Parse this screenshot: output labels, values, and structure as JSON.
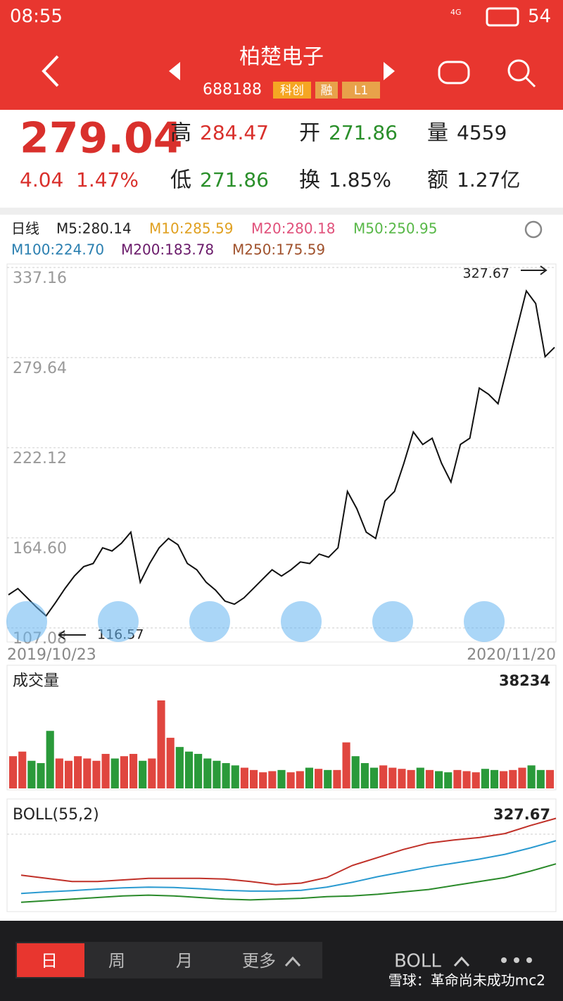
{
  "status_bar": {
    "time": "08:55",
    "network": "4G",
    "battery": "54"
  },
  "header": {
    "title": "柏楚电子",
    "code": "688188",
    "tags": [
      "科创",
      "融",
      "L1"
    ]
  },
  "quote": {
    "price": "279.04",
    "change": "4.04",
    "change_pct": "1.47%",
    "fields": [
      {
        "label": "高",
        "value": "284.47",
        "color": "#d9302c"
      },
      {
        "label": "开",
        "value": "271.86",
        "color": "#2a8f2a"
      },
      {
        "label": "量",
        "value": "4559",
        "color": "#222222"
      },
      {
        "label": "低",
        "value": "271.86",
        "color": "#2a8f2a"
      },
      {
        "label": "换",
        "value": "1.85%",
        "color": "#222222"
      },
      {
        "label": "额",
        "value": "1.27亿",
        "color": "#222222"
      }
    ]
  },
  "ma_legend": [
    {
      "text": "日线",
      "color": "#222222"
    },
    {
      "text": "M5:280.14",
      "color": "#222222"
    },
    {
      "text": "M10:285.59",
      "color": "#e0a020"
    },
    {
      "text": "M20:280.18",
      "color": "#e0507a"
    },
    {
      "text": "M50:250.95",
      "color": "#58b848"
    },
    {
      "text": "M100:224.70",
      "color": "#2a7fb0"
    },
    {
      "text": "M200:183.78",
      "color": "#6a1a6a"
    },
    {
      "text": "M250:175.59",
      "color": "#a0522d"
    }
  ],
  "chart_data": [
    {
      "type": "line",
      "color": "#111111",
      "values": [
        130,
        134,
        128,
        122,
        116.57,
        125,
        134,
        142,
        148,
        150,
        160,
        158,
        163,
        170,
        138,
        150,
        160,
        166,
        162,
        150,
        146,
        138,
        133,
        126,
        124,
        128,
        134,
        140,
        146,
        142,
        146,
        151,
        150,
        156,
        154,
        160,
        196,
        185,
        170,
        166,
        190,
        196,
        214,
        234,
        226,
        230,
        214,
        202,
        226,
        230,
        262,
        258,
        252,
        276,
        300,
        324,
        316,
        282,
        288
      ],
      "ylim": [
        107.08,
        337.16
      ],
      "yticks": [
        107.08,
        {
          "value": 164.6,
          "label": "164.60"
        },
        222.12,
        279.64,
        337.16
      ],
      "grid": true,
      "annotations": [
        "327.67",
        "116.57"
      ],
      "x_labels": [
        "2019/10/23",
        "2020/11/20"
      ]
    },
    {
      "type": "bar",
      "title": "成交量",
      "values": [
        14000,
        16000,
        12000,
        11000,
        25000,
        13000,
        12000,
        14000,
        13000,
        12000,
        15000,
        13000,
        14000,
        15000,
        12000,
        13000,
        38234,
        22000,
        18000,
        16000,
        15000,
        13000,
        12000,
        11000,
        10000,
        9000,
        8000,
        7000,
        7500,
        8000,
        7000,
        7500,
        9000,
        8500,
        8000,
        8000,
        20000,
        14000,
        11000,
        9000,
        10000,
        9000,
        8500,
        8000,
        9000,
        8000,
        7500,
        7000,
        8000,
        7500,
        7000,
        8500,
        8000,
        7500,
        8000,
        9000,
        10000,
        8000,
        8000
      ],
      "ylim": [
        0,
        38234
      ],
      "yticks": [
        38234
      ],
      "up_color": "#e0463f",
      "down_color": "#2a9a3a"
    },
    {
      "type": "line",
      "title": "BOLL(55,2)",
      "ylim": [
        90,
        327.67
      ],
      "yticks": [
        327.67
      ],
      "series": [
        {
          "name": "upper",
          "color": "#c03028",
          "values": [
            176,
            168,
            160,
            160,
            164,
            168,
            168,
            168,
            166,
            160,
            152,
            156,
            170,
            200,
            220,
            240,
            256,
            264,
            270,
            280,
            300,
            318
          ]
        },
        {
          "name": "mid",
          "color": "#2a9ad0",
          "values": [
            130,
            134,
            137,
            141,
            144,
            146,
            145,
            142,
            138,
            136,
            136,
            138,
            146,
            158,
            172,
            184,
            196,
            206,
            216,
            228,
            244,
            262
          ]
        },
        {
          "name": "lower",
          "color": "#2a8a2a",
          "values": [
            108,
            112,
            116,
            120,
            124,
            126,
            124,
            120,
            116,
            114,
            116,
            118,
            122,
            124,
            128,
            134,
            140,
            150,
            160,
            170,
            186,
            204
          ]
        }
      ]
    }
  ],
  "toolbar": {
    "tabs": [
      "日",
      "周",
      "月",
      "更多"
    ],
    "indicator": "BOLL"
  },
  "watermark": "雪球：革命尚未成功mc2"
}
